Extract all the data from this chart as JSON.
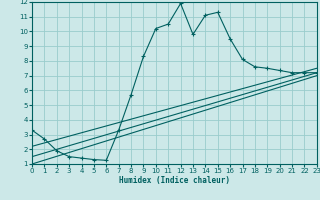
{
  "xlabel": "Humidex (Indice chaleur)",
  "xlim": [
    0,
    23
  ],
  "ylim": [
    1,
    12
  ],
  "xticks": [
    0,
    1,
    2,
    3,
    4,
    5,
    6,
    7,
    8,
    9,
    10,
    11,
    12,
    13,
    14,
    15,
    16,
    17,
    18,
    19,
    20,
    21,
    22,
    23
  ],
  "yticks": [
    1,
    2,
    3,
    4,
    5,
    6,
    7,
    8,
    9,
    10,
    11,
    12
  ],
  "bg_color": "#cce8e8",
  "line_color": "#006060",
  "grid_color": "#99cccc",
  "line1_x": [
    0,
    1,
    2,
    3,
    4,
    5,
    6,
    7,
    8,
    9,
    10,
    11,
    12,
    13,
    14,
    15,
    16,
    17,
    18,
    19,
    20,
    21,
    22,
    23
  ],
  "line1_y": [
    3.3,
    2.7,
    1.9,
    1.5,
    1.4,
    1.3,
    1.25,
    3.3,
    5.7,
    8.3,
    10.2,
    10.5,
    11.9,
    9.8,
    11.1,
    11.3,
    9.5,
    8.1,
    7.6,
    7.5,
    7.35,
    7.2,
    7.2,
    7.2
  ],
  "line2_x": [
    0,
    23
  ],
  "line2_y": [
    1.0,
    7.0
  ],
  "line3_x": [
    0,
    23
  ],
  "line3_y": [
    1.5,
    7.2
  ],
  "line4_x": [
    0,
    23
  ],
  "line4_y": [
    2.2,
    7.5
  ]
}
